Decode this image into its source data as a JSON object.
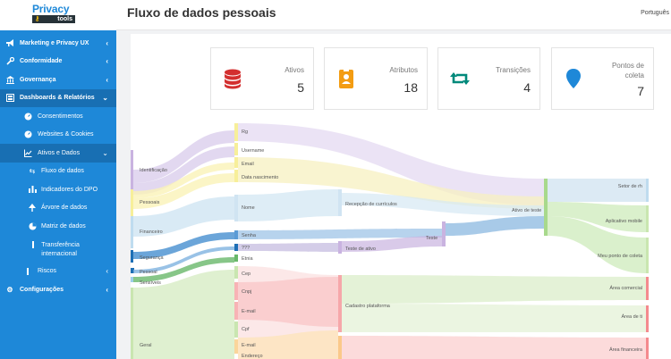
{
  "brand": {
    "logo_top": "Privacy",
    "logo_bottom": "tools"
  },
  "header": {
    "title": "Fluxo de dados pessoais",
    "language": "Português"
  },
  "sidebar": {
    "items": [
      {
        "label": "Marketing e Privacy UX",
        "icon": "megaphone-icon"
      },
      {
        "label": "Conformidade",
        "icon": "wrench-icon"
      },
      {
        "label": "Governança",
        "icon": "bank-icon"
      },
      {
        "label": "Dashboards & Relatórios",
        "icon": "dashboard-icon",
        "expanded": true
      },
      {
        "label": "Consentimentos",
        "icon": "gauge-icon"
      },
      {
        "label": "Websites & Cookies",
        "icon": "gauge-icon"
      },
      {
        "label": "Ativos e Dados",
        "icon": "line-chart-icon",
        "expanded": true
      },
      {
        "label": "Fluxo de dados",
        "icon": "exchange-icon"
      },
      {
        "label": "Indicadores do DPO",
        "icon": "bar-chart-icon"
      },
      {
        "label": "Árvore de dados",
        "icon": "tree-icon"
      },
      {
        "label": "Matriz de dados",
        "icon": "pie-chart-icon"
      },
      {
        "label": "Transferência internacional",
        "icon": "bar-icon"
      },
      {
        "label": "Riscos",
        "icon": "bar-icon"
      },
      {
        "label": "Configurações",
        "icon": "gear-icon"
      }
    ]
  },
  "cards": [
    {
      "label": "Ativos",
      "value": "5",
      "icon": "database-icon",
      "color": "#d32f2f"
    },
    {
      "label": "Atributos",
      "value": "18",
      "icon": "id-badge-icon",
      "color": "#f39c12"
    },
    {
      "label": "Transições",
      "value": "4",
      "icon": "retweet-icon",
      "color": "#00897b"
    },
    {
      "label": "Pontos de coleta",
      "value": "7",
      "icon": "map-marker-icon",
      "color": "#1e88d8"
    }
  ],
  "sankey": {
    "categories": [
      "Identificação",
      "Pessoais",
      "Financeiro",
      "Segurança",
      "Pessoal",
      "Sensíveis",
      "Geral"
    ],
    "attributes": [
      "Rg",
      "Username",
      "Email",
      "Data nascimento",
      "Nome",
      "Senha",
      "???",
      "Etnia",
      "Cep",
      "Cnpj",
      "E-mail",
      "Cpf",
      "E-mail",
      "Endereço"
    ],
    "assets": [
      "Recepção de currículos",
      "Teste de ativo",
      "Teste",
      "Cadastro plataforma",
      "Ativo de teste"
    ],
    "collection_points": [
      "Setor de rh",
      "Aplicativo mobile",
      "Meu ponto de coleta",
      "Área comercial",
      "Área de ti",
      "Área financeira"
    ]
  }
}
